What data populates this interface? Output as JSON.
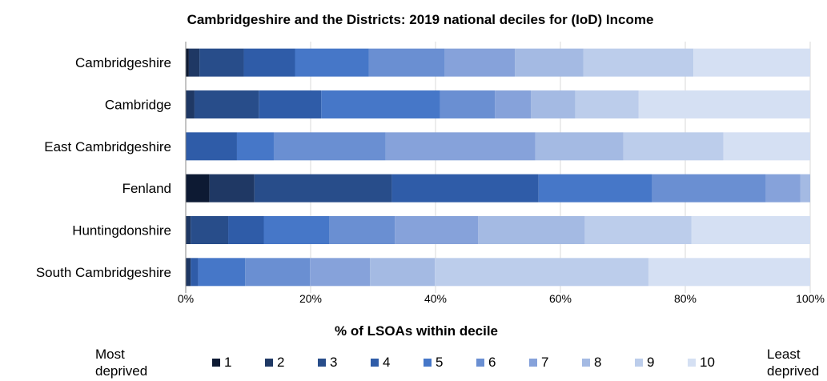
{
  "chart_data": {
    "type": "bar",
    "orientation": "horizontal",
    "stacked": true,
    "title": "Cambridgeshire and the Districts: 2019 national deciles for (IoD) Income",
    "xlabel": "% of LSOAs within decile",
    "ylabel": "",
    "xlim": [
      0,
      100
    ],
    "x_ticks": [
      "0%",
      "20%",
      "40%",
      "60%",
      "80%",
      "100%"
    ],
    "legend_position": "bottom",
    "legend_left_label": "Most deprived",
    "legend_right_label": "Least deprived",
    "categories": [
      "Cambridgeshire",
      "Cambridge",
      "East Cambridgeshire",
      "Fenland",
      "Huntingdonshire",
      "South Cambridgeshire"
    ],
    "series": [
      {
        "name": "1",
        "color": "#0d1a33",
        "values": [
          0.5,
          0,
          0,
          3.8,
          0,
          0
        ]
      },
      {
        "name": "2",
        "color": "#1f3864",
        "values": [
          1.7,
          1.4,
          0,
          7.2,
          0.8,
          0.8
        ]
      },
      {
        "name": "3",
        "color": "#284d8a",
        "values": [
          7.1,
          10.3,
          0,
          22.0,
          6.0,
          0
        ]
      },
      {
        "name": "4",
        "color": "#2f5ca8",
        "values": [
          8.2,
          10.0,
          8.2,
          23.5,
          5.7,
          1.2
        ]
      },
      {
        "name": "5",
        "color": "#4677c8",
        "values": [
          11.8,
          19.0,
          5.9,
          18.2,
          10.5,
          7.5
        ]
      },
      {
        "name": "6",
        "color": "#6a8fd2",
        "values": [
          12.2,
          8.8,
          17.9,
          18.2,
          10.5,
          10.4
        ]
      },
      {
        "name": "7",
        "color": "#86a2da",
        "values": [
          11.2,
          5.8,
          24.0,
          5.5,
          13.3,
          9.6
        ]
      },
      {
        "name": "8",
        "color": "#a4bae3",
        "values": [
          11.0,
          7.1,
          14.1,
          1.6,
          17.1,
          10.4
        ]
      },
      {
        "name": "9",
        "color": "#bccdeb",
        "values": [
          17.6,
          10.1,
          16.0,
          0,
          17.1,
          34.2
        ]
      },
      {
        "name": "10",
        "color": "#d5e0f3",
        "values": [
          18.7,
          27.5,
          13.9,
          0,
          19.0,
          25.9
        ]
      }
    ]
  }
}
